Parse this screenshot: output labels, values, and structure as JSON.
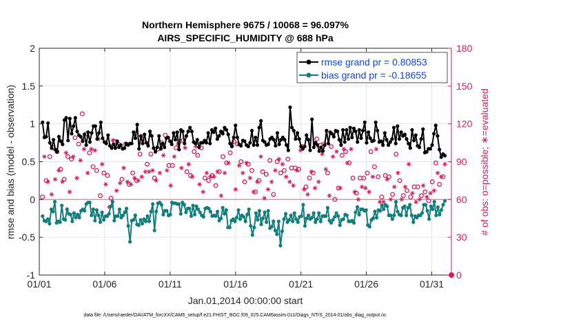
{
  "chart_data": {
    "type": "line",
    "title_line1": "Northern Hemisphere 9675 / 10068 = 96.097%",
    "title_line2": "AIRS_SPECIFIC_HUMIDITY @ 688 hPa",
    "xlabel": "Jan.01,2014 00:00:00 start",
    "ylabel": "rmse and bias (model - observation)",
    "ylabel_right": "# of obs: o=possible; ∗=evaluated",
    "xlim": [
      0,
      31.5
    ],
    "ylim": [
      -1,
      2
    ],
    "ylim_right": [
      0,
      180
    ],
    "x_ticks": [
      0,
      5,
      10,
      15,
      20,
      25,
      30
    ],
    "x_tick_labels": [
      "01/01",
      "01/06",
      "01/11",
      "01/16",
      "01/21",
      "01/26",
      "01/31"
    ],
    "y_ticks": [
      -1,
      -0.5,
      0,
      0.5,
      1,
      1.5,
      2
    ],
    "y_tick_labels": [
      "-1",
      "-0.5",
      "0",
      "0.5",
      "1",
      "1.5",
      "2"
    ],
    "y_right_ticks": [
      0,
      30,
      60,
      90,
      120,
      150,
      180
    ],
    "y_right_tick_labels": [
      "0",
      "30",
      "60",
      "90",
      "120",
      "150",
      "180"
    ],
    "grid": true,
    "legend_position": "top-right",
    "series": [
      {
        "name": "rmse grand pr = 0.80853",
        "color": "#000000",
        "marker": "filled-circle",
        "values": [
          1.02,
          0.82,
          0.83,
          1.01,
          0.75,
          0.68,
          0.79,
          0.66,
          0.63,
          0.83,
          0.77,
          0.73,
          1.05,
          1.08,
          0.78,
          1.07,
          0.87,
          0.97,
          1.08,
          0.9,
          0.85,
          0.83,
          0.77,
          0.86,
          0.72,
          0.89,
          0.76,
          0.88,
          0.97,
          0.97,
          0.8,
          0.88,
          1.02,
          0.81,
          0.76,
          0.74,
          0.85,
          0.71,
          0.68,
          0.73,
          0.68,
          0.77,
          0.69,
          0.72,
          0.67,
          0.68,
          0.74,
          0.72,
          0.74,
          0.74,
          0.89,
          0.81,
          0.99,
          0.67,
          0.84,
          0.74,
          0.86,
          0.75,
          0.71,
          0.9,
          0.84,
          0.68,
          0.63,
          0.69,
          0.84,
          0.67,
          0.74,
          0.69,
          0.81,
          0.82,
          0.77,
          0.73,
          0.88,
          0.79,
          0.89,
          0.66,
          0.92,
          0.9,
          0.74,
          0.84,
          0.9,
          0.95,
          0.9,
          0.76,
          0.74,
          0.79,
          0.69,
          0.75,
          0.75,
          0.78,
          0.75,
          0.88,
          0.74,
          0.92,
          0.89,
          0.94,
          0.8,
          0.84,
          0.9,
          0.87,
          0.95,
          0.92,
          0.86,
          0.74,
          0.7,
          0.82,
          0.98,
          0.82,
          0.73,
          0.71,
          0.78,
          0.77,
          0.72,
          0.7,
          0.75,
          0.91,
          0.72,
          0.82,
          0.72,
          0.95,
          1.04,
          0.78,
          0.76,
          0.72,
          0.73,
          0.8,
          0.82,
          0.79,
          0.71,
          0.88,
          0.73,
          0.79,
          0.82,
          0.79,
          0.72,
          0.65,
          1.22,
          0.95,
          0.91,
          0.8,
          0.88,
          0.8,
          0.7,
          0.67,
          0.7,
          0.85,
          0.79,
          0.65,
          1.06,
          0.69,
          0.75,
          0.72,
          0.64,
          0.69,
          0.64,
          0.72,
          0.91,
          0.74,
          0.89,
          0.87,
          0.83,
          0.91,
          0.9,
          0.79,
          0.72,
          0.92,
          0.76,
          0.92,
          0.8,
          0.95,
          0.82,
          0.94,
          0.9,
          0.76,
          0.92,
          0.81,
          0.91,
          1.02,
          0.75,
          0.89,
          0.81,
          0.77,
          0.78,
          1.02,
          0.91,
          0.76,
          0.77,
          0.72,
          0.88,
          0.79,
          0.72,
          0.76,
          0.8,
          0.95,
          0.74,
          0.97,
          0.8,
          0.89,
          0.84,
          0.86,
          0.8,
          0.74,
          0.68,
          0.92,
          0.78,
          0.85,
          0.71,
          0.69,
          0.8,
          0.93,
          0.62,
          0.63,
          0.67,
          0.67,
          0.72,
          0.87,
          0.98,
          0.84,
          0.66,
          0.56,
          0.6,
          0.58
        ]
      },
      {
        "name": "bias grand pr = -0.18655",
        "color": "#117d7d",
        "marker": "filled-circle",
        "values": [
          -0.22,
          -0.28,
          -0.29,
          -0.26,
          -0.32,
          -0.13,
          -0.16,
          -0.03,
          -0.31,
          -0.29,
          -0.3,
          -0.08,
          -0.26,
          -0.27,
          -0.13,
          -0.19,
          -0.2,
          -0.29,
          -0.18,
          -0.24,
          -0.2,
          -0.24,
          -0.15,
          -0.13,
          -0.15,
          -0.06,
          -0.04,
          -0.04,
          -0.21,
          -0.13,
          -0.28,
          -0.14,
          -0.21,
          -0.3,
          -0.17,
          -0.27,
          -0.22,
          -0.22,
          -0.19,
          -0.09,
          -0.03,
          -0.28,
          -0.22,
          -0.22,
          -0.13,
          -0.24,
          -0.21,
          -0.17,
          -0.12,
          -0.35,
          -0.56,
          -0.28,
          -0.27,
          -0.21,
          -0.33,
          -0.34,
          -0.27,
          -0.32,
          -0.26,
          -0.29,
          -0.22,
          -0.29,
          -0.16,
          -0.06,
          -0.41,
          -0.16,
          -0.05,
          -0.04,
          -0.07,
          -0.2,
          -0.15,
          -0.15,
          -0.21,
          -0.2,
          -0.04,
          -0.05,
          -0.05,
          -0.06,
          -0.06,
          -0.19,
          -0.04,
          -0.07,
          -0.17,
          -0.12,
          -0.12,
          -0.22,
          -0.08,
          -0.2,
          -0.09,
          -0.13,
          -0.17,
          -0.21,
          -0.23,
          -0.12,
          -0.11,
          -0.12,
          -0.16,
          -0.22,
          -0.21,
          -0.22,
          -0.16,
          -0.28,
          -0.25,
          -0.11,
          -0.19,
          -0.14,
          -0.37,
          -0.37,
          -0.28,
          -0.26,
          -0.29,
          -0.24,
          -0.14,
          -0.26,
          -0.21,
          -0.23,
          -0.29,
          -0.2,
          -0.13,
          -0.35,
          -0.47,
          -0.37,
          -0.18,
          -0.27,
          -0.15,
          -0.33,
          -0.25,
          -0.17,
          -0.3,
          -0.15,
          -0.38,
          -0.36,
          -0.29,
          -0.41,
          -0.46,
          -0.29,
          -0.61,
          -0.42,
          -0.26,
          -0.19,
          -0.3,
          -0.27,
          -0.21,
          -0.29,
          -0.18,
          -0.26,
          -0.3,
          -0.23,
          -0.22,
          -0.07,
          -0.35,
          -0.25,
          -0.21,
          -0.26,
          -0.24,
          -0.18,
          -0.3,
          -0.26,
          -0.18,
          -0.29,
          -0.22,
          -0.22,
          -0.22,
          -0.11,
          -0.28,
          -0.31,
          -0.27,
          -0.23,
          -0.18,
          -0.22,
          -0.34,
          -0.27,
          -0.26,
          -0.2,
          -0.21,
          -0.29,
          -0.29,
          -0.28,
          -0.31,
          -0.17,
          -0.1,
          -0.2,
          -0.13,
          -0.13,
          -0.15,
          -0.14,
          -0.34,
          -0.36,
          -0.27,
          -0.25,
          -0.16,
          -0.24,
          -0.14,
          -0.15,
          -0.08,
          -0.13,
          -0.07,
          -0.09,
          -0.21,
          -0.21,
          -0.26,
          -0.21,
          -0.03,
          -0.16,
          -0.2,
          -0.21,
          -0.11,
          -0.09,
          -0.21,
          -0.11,
          -0.07,
          -0.21,
          -0.3,
          -0.22,
          -0.24,
          -0.21,
          -0.21,
          -0.18,
          -0.07,
          -0.07,
          -0.15,
          -0.26,
          -0.09,
          -0.13,
          -0.03,
          -0.21,
          -0.1,
          -0.2,
          -0.14,
          -0.07,
          -0.02
        ]
      },
      {
        "name": "possible",
        "axis": "right",
        "color": "#d81b60",
        "marker": "open-circle",
        "values": [
          62,
          98,
          75,
          76,
          94,
          67,
          101,
          79,
          98,
          87,
          84,
          77,
          76,
          101,
          94,
          69,
          92,
          98,
          109,
          80,
          104,
          95,
          128,
          104,
          112,
          85,
          97,
          104,
          86,
          103,
          83,
          112,
          63,
          92,
          81,
          75,
          79,
          56,
          61,
          111,
          106,
          70,
          104,
          76,
          76,
          88,
          104,
          77,
          72,
          75,
          81,
          80,
          75,
          78,
          96,
          81,
          108,
          85,
          88,
          85,
          96,
          86,
          77,
          78,
          100,
          84,
          105,
          99,
          111,
          86,
          87,
          74,
          87,
          98,
          101,
          108,
          106,
          89,
          107,
          105,
          82,
          92,
          79,
          81,
          98,
          106,
          95,
          75,
          101,
          69,
          77,
          84,
          75,
          81,
          79,
          81,
          71,
          85,
          82,
          66,
          94,
          84,
          89,
          93,
          97,
          107,
          106,
          71,
          104,
          90,
          90,
          84,
          74,
          93,
          88,
          80,
          83,
          69,
          66,
          77,
          75,
          98,
          82,
          63,
          80,
          71,
          91,
          77,
          64,
          86,
          90,
          95,
          81,
          91,
          83,
          81,
          92,
          77,
          85,
          74,
          85,
          86,
          84,
          103,
          102,
          71,
          70,
          67,
          77,
          85,
          81,
          72,
          108,
          77,
          103,
          100,
          104,
          87,
          81,
          66,
          102,
          98,
          60,
          102,
          69,
          72,
          95,
          104,
          98,
          93,
          89,
          104,
          77,
          69,
          65,
          63,
          77,
          73,
          77,
          72,
          81,
          69,
          98,
          81,
          86,
          104,
          78,
          61,
          62,
          61,
          79,
          79,
          78,
          63,
          64,
          73,
          96,
          84,
          75,
          63,
          63,
          73,
          67,
          91,
          62,
          68,
          70,
          61,
          70,
          63,
          63,
          74,
          66,
          65,
          59,
          68,
          74,
          70,
          89,
          84,
          72,
          81,
          78,
          92
        ]
      },
      {
        "name": "evaluated",
        "axis": "right",
        "color": "#d81b60",
        "marker": "asterisk",
        "values": [
          60,
          94,
          73,
          74,
          90,
          64,
          97,
          76,
          94,
          83,
          80,
          74,
          73,
          97,
          90,
          66,
          88,
          94,
          105,
          77,
          100,
          91,
          124,
          100,
          108,
          81,
          93,
          100,
          82,
          99,
          79,
          108,
          60,
          88,
          78,
          72,
          76,
          54,
          58,
          107,
          102,
          67,
          100,
          73,
          73,
          85,
          100,
          74,
          69,
          72,
          78,
          77,
          72,
          75,
          92,
          78,
          104,
          82,
          85,
          82,
          92,
          83,
          74,
          75,
          96,
          81,
          101,
          95,
          107,
          83,
          84,
          71,
          84,
          94,
          97,
          104,
          102,
          85,
          103,
          101,
          79,
          88,
          76,
          78,
          94,
          102,
          91,
          72,
          97,
          66,
          74,
          81,
          72,
          78,
          76,
          78,
          68,
          82,
          79,
          63,
          90,
          81,
          86,
          89,
          93,
          103,
          102,
          68,
          100,
          87,
          87,
          81,
          71,
          89,
          85,
          77,
          80,
          66,
          63,
          74,
          72,
          94,
          79,
          61,
          77,
          68,
          88,
          74,
          61,
          83,
          87,
          92,
          78,
          88,
          80,
          78,
          88,
          74,
          82,
          71,
          82,
          83,
          81,
          99,
          98,
          68,
          67,
          64,
          74,
          82,
          78,
          69,
          104,
          74,
          99,
          96,
          100,
          84,
          78,
          63,
          98,
          94,
          57,
          98,
          66,
          69,
          91,
          100,
          94,
          89,
          86,
          100,
          74,
          66,
          62,
          60,
          74,
          70,
          74,
          69,
          78,
          66,
          94,
          78,
          83,
          100,
          75,
          58,
          59,
          58,
          76,
          76,
          75,
          60,
          61,
          70,
          92,
          81,
          72,
          60,
          60,
          70,
          64,
          88,
          59,
          65,
          67,
          58,
          67,
          60,
          60,
          71,
          63,
          62,
          57,
          65,
          71,
          67,
          86,
          81,
          69,
          78,
          75,
          88
        ]
      }
    ]
  },
  "footer": "data file: /Users/raeder/DAI/ATM_forcXX/CAM6_setup/f.e21.FHIST_BGC.f09_025.CAM6assim.011/Diags_NTrS_2014-01/obs_diag_output.nc"
}
